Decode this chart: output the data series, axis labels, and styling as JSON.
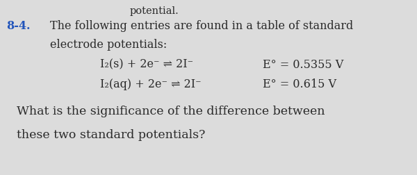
{
  "background_color": "#dcdcdc",
  "header_text": "potential.",
  "problem_number": "8-4.",
  "intro_line1": "The following entries are found in a table of standard",
  "intro_line2": "electrode potentials:",
  "eq1_left": "I₂(s) + 2e⁻ ⇌ 2I⁻",
  "eq1_right": "E° = 0.5355 V",
  "eq2_left": "I₂(aq) + 2e⁻ ⇌ 2I⁻",
  "eq2_right": "E° = 0.615 V",
  "question_line1": "What is the significance of the difference between",
  "question_line2": "these two standard potentials?",
  "font_size_header": 10.5,
  "font_size_problem": 11.5,
  "font_size_eq": 11.5,
  "font_size_question": 12.5,
  "text_color": "#2a2a2a",
  "number_color": "#2255bb"
}
